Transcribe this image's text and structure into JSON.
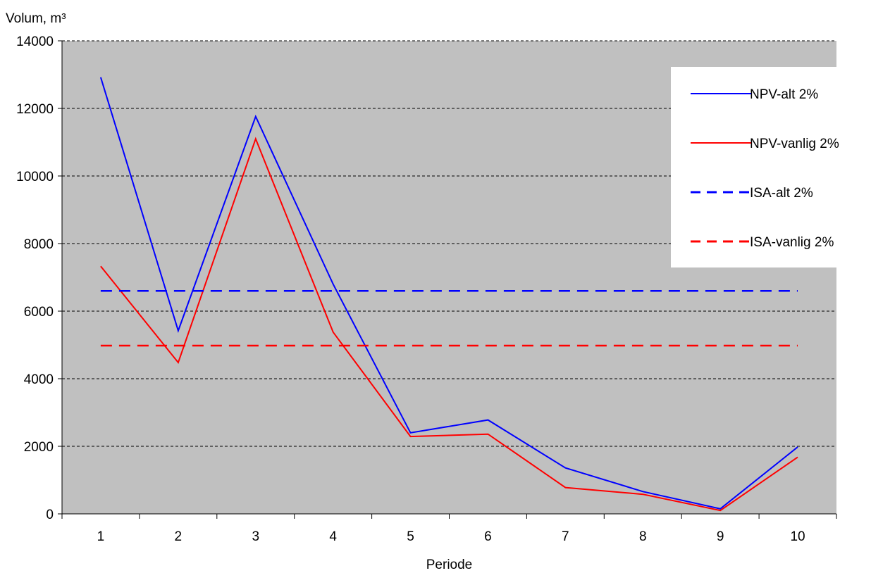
{
  "chart_data": {
    "type": "line",
    "title": "",
    "xlabel": "Periode",
    "ylabel": "Volum, m³",
    "categories": [
      "1",
      "2",
      "3",
      "4",
      "5",
      "6",
      "7",
      "8",
      "9",
      "10"
    ],
    "ylim": [
      0,
      14000
    ],
    "yticks": [
      "0",
      "2000",
      "4000",
      "6000",
      "8000",
      "10000",
      "12000",
      "14000"
    ],
    "grid": "horizontal dashed",
    "legend_position": "top-right",
    "plot_background": "#c0c0c0",
    "series": [
      {
        "name": "NPV-alt 2%",
        "color": "#0000ff",
        "dashed": false,
        "values": [
          12920,
          5420,
          11760,
          6800,
          2400,
          2780,
          1360,
          660,
          150,
          1980
        ]
      },
      {
        "name": "NPV-vanlig 2%",
        "color": "#ff0000",
        "dashed": false,
        "values": [
          7330,
          4480,
          11100,
          5380,
          2290,
          2360,
          780,
          580,
          100,
          1680
        ]
      },
      {
        "name": "ISA-alt 2%",
        "color": "#0000ff",
        "dashed": true,
        "values": [
          6600,
          6600,
          6600,
          6600,
          6600,
          6600,
          6600,
          6600,
          6600,
          6600
        ]
      },
      {
        "name": "ISA-vanlig 2%",
        "color": "#ff0000",
        "dashed": true,
        "values": [
          4980,
          4980,
          4980,
          4980,
          4980,
          4980,
          4980,
          4980,
          4980,
          4980
        ]
      }
    ]
  }
}
